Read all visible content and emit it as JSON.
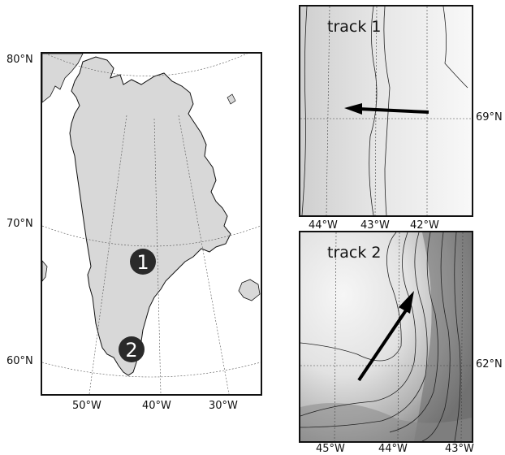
{
  "main_map": {
    "lat_labels": [
      "80°N",
      "70°N",
      "60°N"
    ],
    "lon_labels": [
      "50°W",
      "40°W",
      "30°W"
    ],
    "markers": [
      {
        "label": "1",
        "lat": 69.4,
        "lon": -43.0
      },
      {
        "label": "2",
        "lat": 61.3,
        "lon": -45.3
      }
    ],
    "land_color": "#d8d8d8",
    "marker_color": "#2a2a2a"
  },
  "panel_1": {
    "title": "track 1",
    "lon_labels": [
      "44°W",
      "43°W",
      "42°W"
    ],
    "lat_label": "69°N",
    "track": {
      "direction": "westward"
    }
  },
  "panel_2": {
    "title": "track 2",
    "lon_labels": [
      "45°W",
      "44°W",
      "43°W"
    ],
    "lat_label": "62°N",
    "track": {
      "direction": "northeastward"
    }
  }
}
